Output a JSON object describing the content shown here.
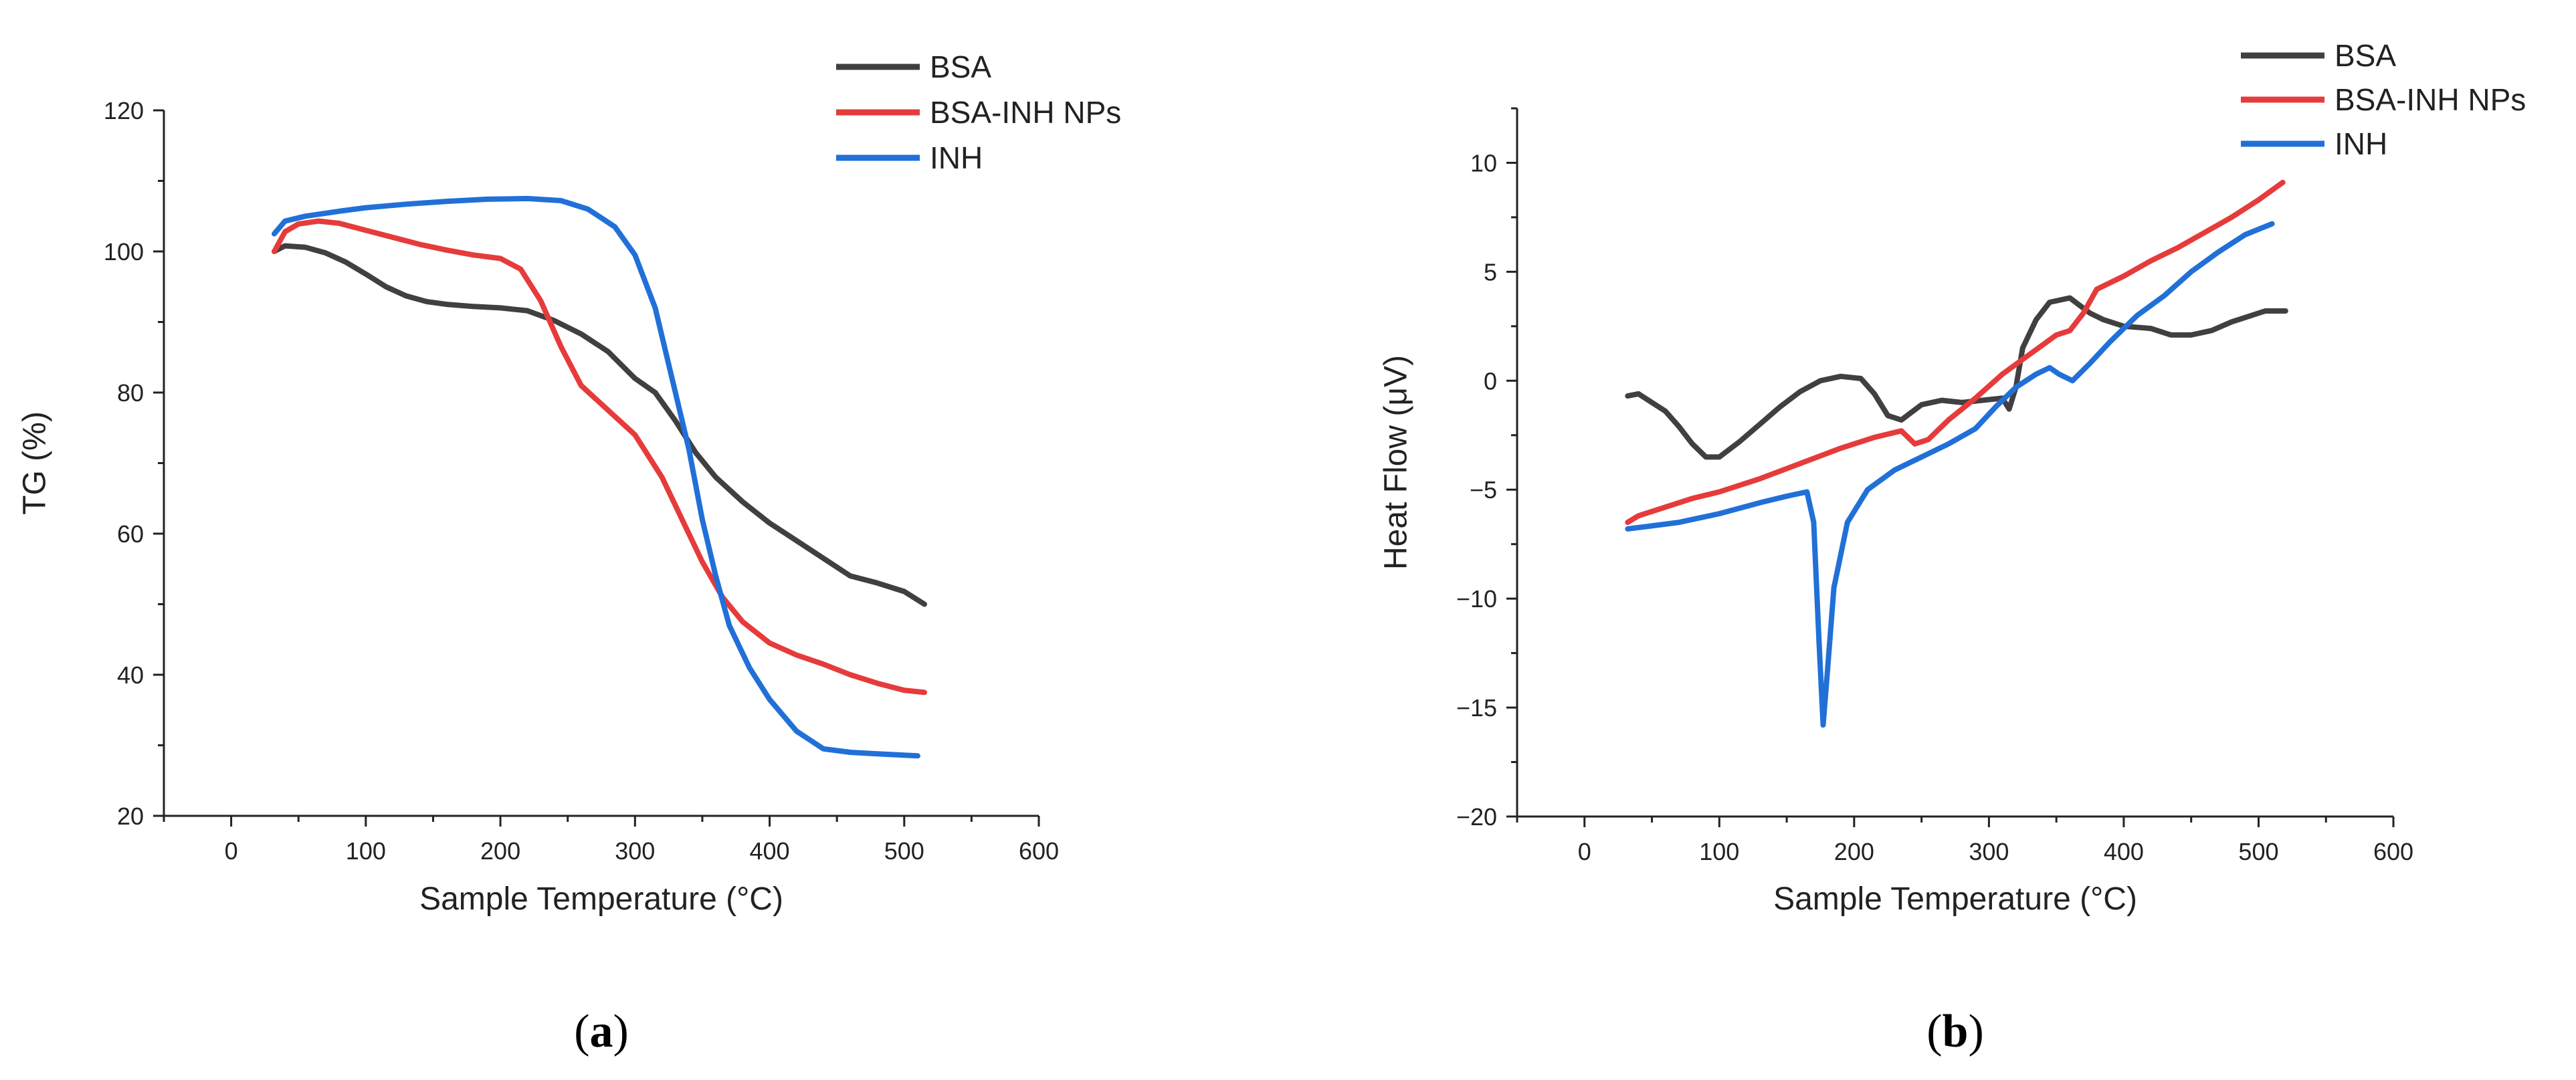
{
  "chart_data": [
    {
      "id": "a",
      "type": "line",
      "panel_label": "(a)",
      "panel_letter": "a",
      "xlabel": "Sample Temperature (°C)",
      "ylabel": "TG (%)",
      "xlim": [
        -50,
        600
      ],
      "ylim": [
        20,
        120
      ],
      "xticks": [
        0,
        100,
        200,
        300,
        400,
        500,
        600
      ],
      "yticks": [
        20,
        40,
        60,
        80,
        100,
        120
      ],
      "series": [
        {
          "name": "BSA",
          "color": "#404040",
          "points": [
            [
              32,
              100
            ],
            [
              40,
              100.8
            ],
            [
              55,
              100.6
            ],
            [
              70,
              99.8
            ],
            [
              85,
              98.5
            ],
            [
              100,
              96.8
            ],
            [
              115,
              95
            ],
            [
              130,
              93.7
            ],
            [
              145,
              92.9
            ],
            [
              160,
              92.5
            ],
            [
              180,
              92.2
            ],
            [
              200,
              92
            ],
            [
              220,
              91.6
            ],
            [
              240,
              90.2
            ],
            [
              260,
              88.3
            ],
            [
              280,
              85.8
            ],
            [
              300,
              82
            ],
            [
              315,
              80
            ],
            [
              330,
              76
            ],
            [
              345,
              71.5
            ],
            [
              360,
              68
            ],
            [
              380,
              64.5
            ],
            [
              400,
              61.5
            ],
            [
              420,
              59
            ],
            [
              440,
              56.5
            ],
            [
              460,
              54
            ],
            [
              480,
              53
            ],
            [
              500,
              51.8
            ],
            [
              515,
              50
            ]
          ]
        },
        {
          "name": "BSA-INH NPs",
          "color": "#e63b3b",
          "points": [
            [
              32,
              100
            ],
            [
              40,
              102.8
            ],
            [
              50,
              103.9
            ],
            [
              65,
              104.3
            ],
            [
              80,
              104
            ],
            [
              100,
              103
            ],
            [
              120,
              102
            ],
            [
              140,
              101
            ],
            [
              160,
              100.2
            ],
            [
              180,
              99.5
            ],
            [
              200,
              99
            ],
            [
              215,
              97.5
            ],
            [
              230,
              93
            ],
            [
              245,
              86.5
            ],
            [
              260,
              81
            ],
            [
              280,
              77.5
            ],
            [
              300,
              74
            ],
            [
              320,
              68
            ],
            [
              335,
              62
            ],
            [
              350,
              56
            ],
            [
              365,
              51
            ],
            [
              380,
              47.5
            ],
            [
              400,
              44.5
            ],
            [
              420,
              42.8
            ],
            [
              440,
              41.5
            ],
            [
              460,
              40
            ],
            [
              480,
              38.8
            ],
            [
              500,
              37.8
            ],
            [
              515,
              37.5
            ]
          ]
        },
        {
          "name": "INH",
          "color": "#2170d8",
          "points": [
            [
              32,
              102.5
            ],
            [
              40,
              104.3
            ],
            [
              55,
              105
            ],
            [
              80,
              105.7
            ],
            [
              100,
              106.2
            ],
            [
              130,
              106.7
            ],
            [
              160,
              107.1
            ],
            [
              190,
              107.4
            ],
            [
              220,
              107.5
            ],
            [
              245,
              107.2
            ],
            [
              265,
              106
            ],
            [
              285,
              103.5
            ],
            [
              300,
              99.5
            ],
            [
              315,
              92
            ],
            [
              330,
              80
            ],
            [
              340,
              72
            ],
            [
              350,
              62
            ],
            [
              360,
              54
            ],
            [
              370,
              47
            ],
            [
              385,
              41
            ],
            [
              400,
              36.5
            ],
            [
              420,
              32
            ],
            [
              440,
              29.5
            ],
            [
              460,
              29
            ],
            [
              480,
              28.8
            ],
            [
              510,
              28.5
            ]
          ]
        }
      ]
    },
    {
      "id": "b",
      "type": "line",
      "panel_label": "(b)",
      "panel_letter": "b",
      "xlabel": "Sample Temperature (°C)",
      "ylabel": "Heat Flow (μV)",
      "xlim": [
        -50,
        600
      ],
      "ylim": [
        -20,
        12.5
      ],
      "xticks": [
        0,
        100,
        200,
        300,
        400,
        500,
        600
      ],
      "yticks": [
        -20,
        -15,
        -10,
        -5,
        0,
        5,
        10
      ],
      "ytick_labels": [
        "−20",
        "−15",
        "−10",
        "−5",
        "0",
        "5",
        "10"
      ],
      "series": [
        {
          "name": "BSA",
          "color": "#404040",
          "points": [
            [
              32,
              -0.7
            ],
            [
              40,
              -0.6
            ],
            [
              50,
              -1
            ],
            [
              60,
              -1.4
            ],
            [
              70,
              -2.1
            ],
            [
              80,
              -2.9
            ],
            [
              90,
              -3.5
            ],
            [
              100,
              -3.5
            ],
            [
              115,
              -2.8
            ],
            [
              130,
              -2
            ],
            [
              145,
              -1.2
            ],
            [
              160,
              -0.5
            ],
            [
              175,
              0
            ],
            [
              190,
              0.2
            ],
            [
              205,
              0.1
            ],
            [
              215,
              -0.6
            ],
            [
              225,
              -1.6
            ],
            [
              235,
              -1.8
            ],
            [
              250,
              -1.1
            ],
            [
              265,
              -0.9
            ],
            [
              280,
              -1
            ],
            [
              295,
              -0.9
            ],
            [
              310,
              -0.8
            ],
            [
              315,
              -1.3
            ],
            [
              320,
              -0.3
            ],
            [
              325,
              1.5
            ],
            [
              335,
              2.8
            ],
            [
              345,
              3.6
            ],
            [
              360,
              3.8
            ],
            [
              375,
              3.1
            ],
            [
              385,
              2.8
            ],
            [
              400,
              2.5
            ],
            [
              420,
              2.4
            ],
            [
              435,
              2.1
            ],
            [
              450,
              2.1
            ],
            [
              465,
              2.3
            ],
            [
              480,
              2.7
            ],
            [
              495,
              3
            ],
            [
              505,
              3.2
            ],
            [
              520,
              3.2
            ]
          ]
        },
        {
          "name": "BSA-INH NPs",
          "color": "#e63b3b",
          "points": [
            [
              32,
              -6.5
            ],
            [
              40,
              -6.2
            ],
            [
              60,
              -5.8
            ],
            [
              80,
              -5.4
            ],
            [
              100,
              -5.1
            ],
            [
              130,
              -4.5
            ],
            [
              160,
              -3.8
            ],
            [
              190,
              -3.1
            ],
            [
              215,
              -2.6
            ],
            [
              235,
              -2.3
            ],
            [
              245,
              -2.9
            ],
            [
              255,
              -2.7
            ],
            [
              270,
              -1.8
            ],
            [
              290,
              -0.8
            ],
            [
              310,
              0.3
            ],
            [
              330,
              1.2
            ],
            [
              350,
              2.1
            ],
            [
              360,
              2.3
            ],
            [
              370,
              3.1
            ],
            [
              380,
              4.2
            ],
            [
              400,
              4.8
            ],
            [
              420,
              5.5
            ],
            [
              440,
              6.1
            ],
            [
              460,
              6.8
            ],
            [
              480,
              7.5
            ],
            [
              500,
              8.3
            ],
            [
              518,
              9.1
            ]
          ]
        },
        {
          "name": "INH",
          "color": "#2170d8",
          "points": [
            [
              32,
              -6.8
            ],
            [
              45,
              -6.7
            ],
            [
              70,
              -6.5
            ],
            [
              100,
              -6.1
            ],
            [
              130,
              -5.6
            ],
            [
              150,
              -5.3
            ],
            [
              165,
              -5.1
            ],
            [
              170,
              -6.5
            ],
            [
              174,
              -12
            ],
            [
              177,
              -15.8
            ],
            [
              180,
              -13.5
            ],
            [
              185,
              -9.5
            ],
            [
              195,
              -6.5
            ],
            [
              210,
              -5
            ],
            [
              230,
              -4.1
            ],
            [
              250,
              -3.5
            ],
            [
              270,
              -2.9
            ],
            [
              290,
              -2.2
            ],
            [
              305,
              -1.2
            ],
            [
              320,
              -0.3
            ],
            [
              335,
              0.3
            ],
            [
              345,
              0.6
            ],
            [
              352,
              0.3
            ],
            [
              362,
              0
            ],
            [
              375,
              0.8
            ],
            [
              390,
              1.8
            ],
            [
              410,
              3
            ],
            [
              430,
              3.9
            ],
            [
              450,
              5
            ],
            [
              470,
              5.9
            ],
            [
              490,
              6.7
            ],
            [
              510,
              7.2
            ]
          ]
        }
      ]
    }
  ]
}
